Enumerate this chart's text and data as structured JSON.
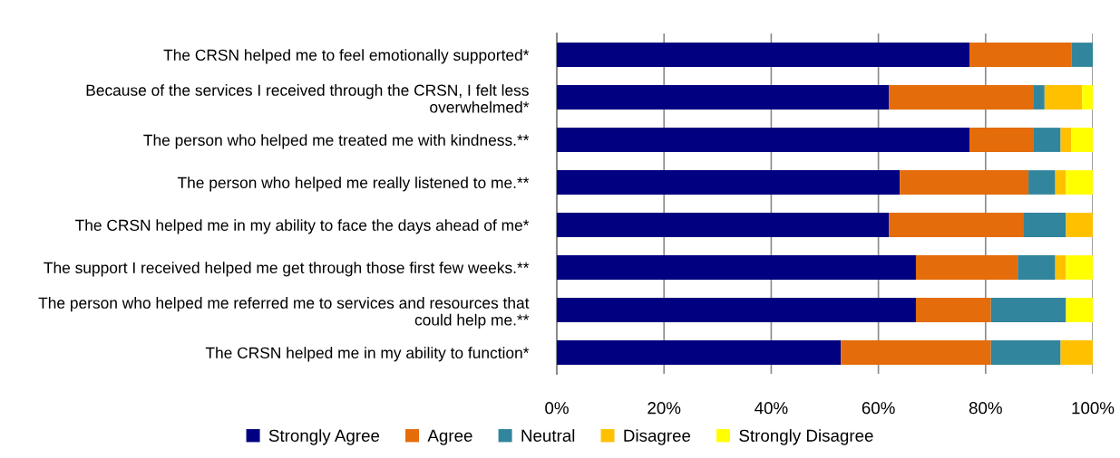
{
  "chart_data": {
    "type": "bar",
    "orientation": "horizontal",
    "stacked": true,
    "categories": [
      "The CRSN helped me to feel emotionally supported*",
      "Because of the services I received through the CRSN, I felt less\noverwhelmed*",
      "The person who helped me treated me with kindness.**",
      "The person who helped me really listened to me.**",
      "The CRSN helped me in my ability to face the days ahead of me*",
      "The support I received helped me get through those first few weeks.**",
      "The person who helped me referred me to services and resources that\ncould help me.**",
      "The CRSN helped me in my ability to function*"
    ],
    "series": [
      {
        "name": "Strongly Agree",
        "color": "#000080",
        "values": [
          77,
          62,
          77,
          64,
          62,
          67,
          67,
          53
        ]
      },
      {
        "name": "Agree",
        "color": "#e46c0a",
        "values": [
          19,
          27,
          12,
          24,
          25,
          19,
          14,
          28
        ]
      },
      {
        "name": "Neutral",
        "color": "#31859c",
        "values": [
          4,
          2,
          5,
          5,
          8,
          7,
          14,
          13
        ]
      },
      {
        "name": "Disagree",
        "color": "#ffc000",
        "values": [
          0,
          7,
          2,
          2,
          5,
          2,
          0,
          6
        ]
      },
      {
        "name": "Strongly Disagree",
        "color": "#ffff00",
        "values": [
          0,
          2,
          4,
          5,
          0,
          5,
          5,
          0
        ]
      }
    ],
    "xlim": [
      0,
      100
    ],
    "xticks": [
      {
        "value": 0,
        "label": "0%"
      },
      {
        "value": 20,
        "label": "20%"
      },
      {
        "value": 40,
        "label": "40%"
      },
      {
        "value": 60,
        "label": "60%"
      },
      {
        "value": 80,
        "label": "80%"
      },
      {
        "value": 100,
        "label": "100%"
      }
    ],
    "grid": "x",
    "legend": "bottom"
  }
}
